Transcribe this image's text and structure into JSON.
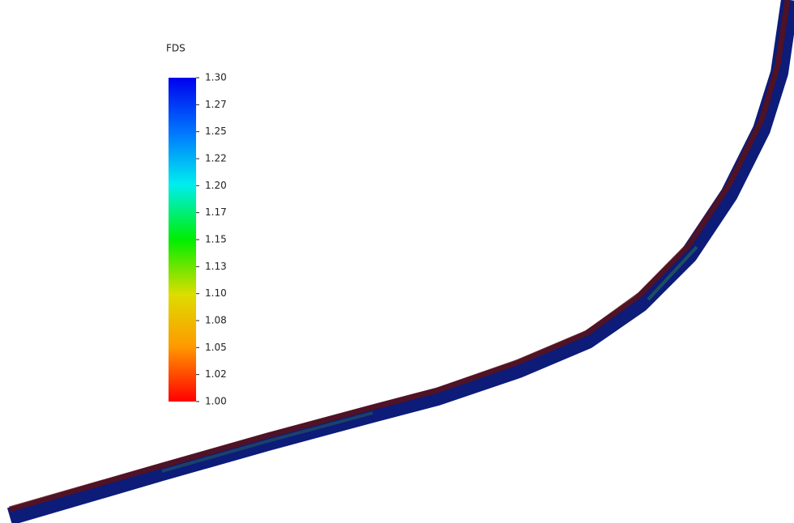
{
  "chart_data": {
    "type": "colorbar",
    "title": "FDS",
    "ylim": [
      1.0,
      1.3
    ],
    "yticks": [
      {
        "value": 1.0,
        "label": "1.00"
      },
      {
        "value": 1.025,
        "label": "1.02"
      },
      {
        "value": 1.05,
        "label": "1.05"
      },
      {
        "value": 1.075,
        "label": "1.08"
      },
      {
        "value": 1.1,
        "label": "1.10"
      },
      {
        "value": 1.125,
        "label": "1.13"
      },
      {
        "value": 1.15,
        "label": "1.15"
      },
      {
        "value": 1.175,
        "label": "1.17"
      },
      {
        "value": 1.2,
        "label": "1.20"
      },
      {
        "value": 1.225,
        "label": "1.22"
      },
      {
        "value": 1.25,
        "label": "1.25"
      },
      {
        "value": 1.275,
        "label": "1.27"
      },
      {
        "value": 1.3,
        "label": "1.30"
      }
    ]
  }
}
